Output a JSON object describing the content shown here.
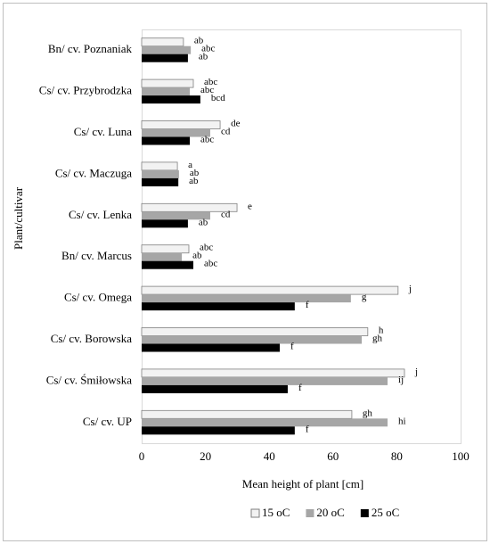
{
  "chart_data": {
    "type": "hbar",
    "categories": [
      "Bn/ cv. Poznaniak",
      "Cs/ cv. Przybrodzka",
      "Cs/ cv. Luna",
      "Cs/ cv. Maczuga",
      "Cs/ cv. Lenka",
      "Bn/ cv. Marcus",
      "Cs/ cv. Omega",
      "Cs/ cv. Borowska",
      "Cs/ cv. Śmiłowska",
      "Cs/ cv. UP"
    ],
    "series": [
      {
        "name": "15 oC",
        "color": "#f2f2f2",
        "values": [
          13.1,
          16.2,
          24.6,
          11.2,
          29.9,
          14.8,
          80.4,
          70.9,
          82.4,
          65.9
        ],
        "value_labels": [
          "ab",
          "abc",
          "de",
          "a",
          "e",
          "abc",
          "j",
          "h",
          "j",
          "gh"
        ]
      },
      {
        "name": "20 oC",
        "color": "#a6a6a6",
        "values": [
          15.4,
          15.1,
          21.5,
          11.7,
          21.5,
          12.6,
          65.6,
          69.0,
          77.1,
          77.1
        ],
        "value_labels": [
          "abc",
          "abc",
          "cd",
          "ab",
          "cd",
          "ab",
          "g",
          "gh",
          "ij",
          "hi"
        ]
      },
      {
        "name": "25 oC",
        "color": "#000000",
        "values": [
          14.5,
          18.4,
          15.1,
          11.5,
          14.5,
          16.2,
          48.0,
          43.3,
          45.8,
          48.0
        ],
        "value_labels": [
          "ab",
          "bcd",
          "abc",
          "ab",
          "ab",
          "abc",
          "f",
          "f",
          "f",
          "f"
        ]
      }
    ],
    "xlabel": "Mean height of plant [cm]",
    "ylabel": "Plant/cultivar",
    "xlim": [
      0,
      100
    ],
    "xticks": [
      0,
      20,
      40,
      60,
      80,
      100
    ],
    "grid": false,
    "legend": "bottom"
  }
}
